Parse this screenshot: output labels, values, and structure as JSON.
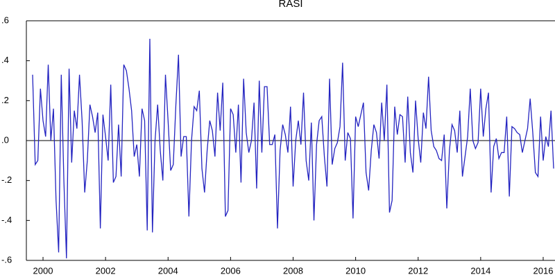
{
  "chart_data": {
    "type": "line",
    "title": "RASI",
    "categories": [
      null,
      null,
      null,
      null,
      "2000",
      null,
      null,
      null,
      null,
      null,
      null,
      null,
      null,
      null,
      null,
      null,
      null,
      null,
      null,
      null,
      null,
      null,
      null,
      null,
      null,
      null,
      null,
      null,
      "2002",
      null,
      null,
      null,
      null,
      null,
      null,
      null,
      null,
      null,
      null,
      null,
      null,
      null,
      null,
      null,
      null,
      null,
      null,
      null,
      null,
      null,
      null,
      null,
      "2004",
      null,
      null,
      null,
      null,
      null,
      null,
      null,
      null,
      null,
      null,
      null,
      null,
      null,
      null,
      null,
      null,
      null,
      null,
      null,
      null,
      null,
      null,
      null,
      "2006",
      null,
      null,
      null,
      null,
      null,
      null,
      null,
      null,
      null,
      null,
      null,
      null,
      null,
      null,
      null,
      null,
      null,
      null,
      null,
      null,
      null,
      null,
      null,
      "2008",
      null,
      null,
      null,
      null,
      null,
      null,
      null,
      null,
      null,
      null,
      null,
      null,
      null,
      null,
      null,
      null,
      null,
      null,
      null,
      null,
      null,
      null,
      null,
      "2010",
      null,
      null,
      null,
      null,
      null,
      null,
      null,
      null,
      null,
      null,
      null,
      null,
      null,
      null,
      null,
      null,
      null,
      null,
      null,
      null,
      null,
      null,
      null,
      "2012",
      null,
      null,
      null,
      null,
      null,
      null,
      null,
      null,
      null,
      null,
      null,
      null,
      null,
      null,
      null,
      null,
      null,
      null,
      null,
      null,
      null,
      null,
      null,
      "2014",
      null,
      null,
      null,
      null,
      null,
      null,
      null,
      null,
      null,
      null,
      null,
      null,
      null,
      null,
      null,
      null,
      null,
      null,
      null,
      null,
      null,
      null,
      null,
      "2016",
      null,
      null,
      null,
      null
    ],
    "series": [
      {
        "name": "RASI",
        "color": "#2323c0",
        "values": [
          0.33,
          -0.12,
          -0.1,
          0.26,
          0.1,
          0.02,
          0.38,
          0.0,
          0.16,
          -0.3,
          -0.56,
          0.33,
          -0.2,
          -0.59,
          0.36,
          -0.11,
          0.15,
          0.06,
          0.33,
          0.1,
          -0.26,
          -0.1,
          0.18,
          0.12,
          0.04,
          0.14,
          -0.44,
          0.13,
          0.02,
          -0.1,
          0.28,
          -0.21,
          -0.18,
          0.08,
          -0.18,
          0.38,
          0.35,
          0.26,
          0.15,
          -0.08,
          -0.02,
          -0.18,
          0.16,
          0.1,
          -0.45,
          0.51,
          -0.46,
          0.0,
          0.18,
          -0.05,
          -0.2,
          0.33,
          0.1,
          -0.15,
          -0.12,
          0.18,
          0.43,
          -0.08,
          0.02,
          0.02,
          -0.38,
          0.0,
          0.17,
          0.15,
          0.25,
          -0.14,
          -0.26,
          -0.05,
          0.1,
          0.05,
          -0.08,
          0.24,
          0.05,
          0.29,
          -0.38,
          -0.35,
          0.16,
          0.13,
          -0.06,
          0.18,
          -0.21,
          0.31,
          0.04,
          -0.06,
          0.0,
          0.19,
          -0.24,
          0.3,
          -0.06,
          0.27,
          0.27,
          -0.02,
          -0.02,
          0.03,
          -0.44,
          -0.05,
          0.08,
          0.03,
          -0.06,
          0.17,
          -0.23,
          0.0,
          0.1,
          -0.02,
          0.24,
          -0.1,
          -0.2,
          0.09,
          -0.4,
          -0.02,
          0.1,
          0.12,
          -0.08,
          -0.23,
          0.31,
          -0.12,
          -0.04,
          -0.01,
          0.07,
          0.39,
          -0.1,
          0.04,
          0.01,
          -0.39,
          0.12,
          0.07,
          0.13,
          0.19,
          -0.16,
          -0.25,
          -0.05,
          0.08,
          0.04,
          -0.09,
          0.19,
          0.0,
          0.28,
          -0.36,
          -0.3,
          0.17,
          0.03,
          0.13,
          0.12,
          -0.11,
          0.22,
          -0.06,
          -0.16,
          0.2,
          0.01,
          -0.11,
          0.14,
          0.06,
          0.32,
          0.05,
          -0.03,
          -0.05,
          -0.09,
          -0.1,
          0.03,
          -0.34,
          -0.05,
          0.08,
          0.05,
          -0.06,
          0.15,
          -0.18,
          -0.08,
          0.02,
          0.26,
          0.0,
          -0.04,
          -0.01,
          0.26,
          0.02,
          0.16,
          0.24,
          -0.26,
          -0.03,
          0.01,
          -0.09,
          -0.06,
          -0.06,
          0.12,
          -0.28,
          0.07,
          0.06,
          0.04,
          0.03,
          -0.06,
          0.0,
          0.06,
          0.21,
          0.04,
          -0.16,
          -0.18,
          0.12,
          -0.1,
          0.02,
          -0.03,
          0.15,
          -0.14
        ]
      }
    ],
    "ylim": [
      -0.6,
      0.6
    ],
    "yticks": [
      {
        "value": -0.6,
        "label": "-.6"
      },
      {
        "value": -0.4,
        "label": "-.4"
      },
      {
        "value": -0.2,
        "label": "-.2"
      },
      {
        "value": 0,
        "label": ".0"
      },
      {
        "value": 0.2,
        "label": ".2"
      },
      {
        "value": 0.4,
        "label": ".4"
      },
      {
        "value": 0.6,
        "label": ".6"
      }
    ],
    "grid": false,
    "zero_line": true
  }
}
